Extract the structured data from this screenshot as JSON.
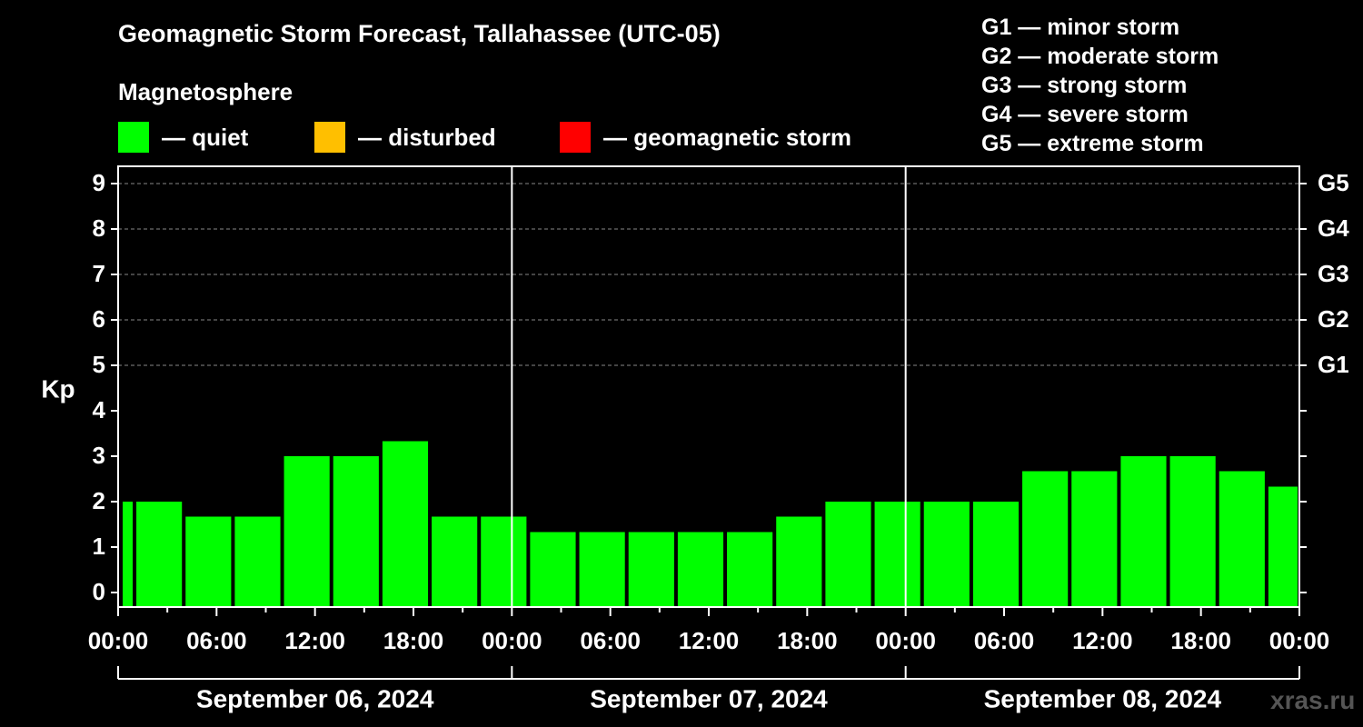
{
  "title": "Geomagnetic Storm Forecast, Tallahassee (UTC-05)",
  "magnetosphere_label": "Magnetosphere",
  "legend": [
    {
      "label": "— quiet",
      "color": "#00ff00"
    },
    {
      "label": "— disturbed",
      "color": "#ffbf00"
    },
    {
      "label": "— geomagnetic storm",
      "color": "#ff0000"
    }
  ],
  "g_scale": [
    "G1 — minor storm",
    "G2 — moderate storm",
    "G3 — strong storm",
    "G4 — severe storm",
    "G5 — extreme storm"
  ],
  "watermark": "xras.ru",
  "chart_data": {
    "type": "bar",
    "ylabel": "Kp",
    "ylim": [
      0,
      9
    ],
    "y_ticks": [
      0,
      1,
      2,
      3,
      4,
      5,
      6,
      7,
      8,
      9
    ],
    "right_axis_labels": [
      {
        "kp": 5,
        "label": "G1"
      },
      {
        "kp": 6,
        "label": "G2"
      },
      {
        "kp": 7,
        "label": "G3"
      },
      {
        "kp": 8,
        "label": "G4"
      },
      {
        "kp": 9,
        "label": "G5"
      }
    ],
    "grid": "horizontal dashed at Kp 5-9",
    "x_tick_labels": [
      "00:00",
      "06:00",
      "12:00",
      "18:00",
      "00:00",
      "06:00",
      "12:00",
      "18:00",
      "00:00",
      "06:00",
      "12:00",
      "18:00",
      "00:00"
    ],
    "dates": [
      "September 06, 2024",
      "September 07, 2024",
      "September 08, 2024"
    ],
    "bar_color": "#00ff00",
    "bars": [
      {
        "start_hour": 0,
        "end_hour": 1,
        "kp": 2.0
      },
      {
        "start_hour": 1,
        "end_hour": 4,
        "kp": 2.0
      },
      {
        "start_hour": 4,
        "end_hour": 7,
        "kp": 1.67
      },
      {
        "start_hour": 7,
        "end_hour": 10,
        "kp": 1.67
      },
      {
        "start_hour": 10,
        "end_hour": 13,
        "kp": 3.0
      },
      {
        "start_hour": 13,
        "end_hour": 16,
        "kp": 3.0
      },
      {
        "start_hour": 16,
        "end_hour": 19,
        "kp": 3.33
      },
      {
        "start_hour": 19,
        "end_hour": 22,
        "kp": 1.67
      },
      {
        "start_hour": 22,
        "end_hour": 25,
        "kp": 1.67
      },
      {
        "start_hour": 25,
        "end_hour": 28,
        "kp": 1.33
      },
      {
        "start_hour": 28,
        "end_hour": 31,
        "kp": 1.33
      },
      {
        "start_hour": 31,
        "end_hour": 34,
        "kp": 1.33
      },
      {
        "start_hour": 34,
        "end_hour": 37,
        "kp": 1.33
      },
      {
        "start_hour": 37,
        "end_hour": 40,
        "kp": 1.33
      },
      {
        "start_hour": 40,
        "end_hour": 43,
        "kp": 1.67
      },
      {
        "start_hour": 43,
        "end_hour": 46,
        "kp": 2.0
      },
      {
        "start_hour": 46,
        "end_hour": 49,
        "kp": 2.0
      },
      {
        "start_hour": 49,
        "end_hour": 52,
        "kp": 2.0
      },
      {
        "start_hour": 52,
        "end_hour": 55,
        "kp": 2.0
      },
      {
        "start_hour": 55,
        "end_hour": 58,
        "kp": 2.67
      },
      {
        "start_hour": 58,
        "end_hour": 61,
        "kp": 2.67
      },
      {
        "start_hour": 61,
        "end_hour": 64,
        "kp": 3.0
      },
      {
        "start_hour": 64,
        "end_hour": 67,
        "kp": 3.0
      },
      {
        "start_hour": 67,
        "end_hour": 70,
        "kp": 2.67
      },
      {
        "start_hour": 70,
        "end_hour": 72,
        "kp": 2.33
      }
    ]
  }
}
